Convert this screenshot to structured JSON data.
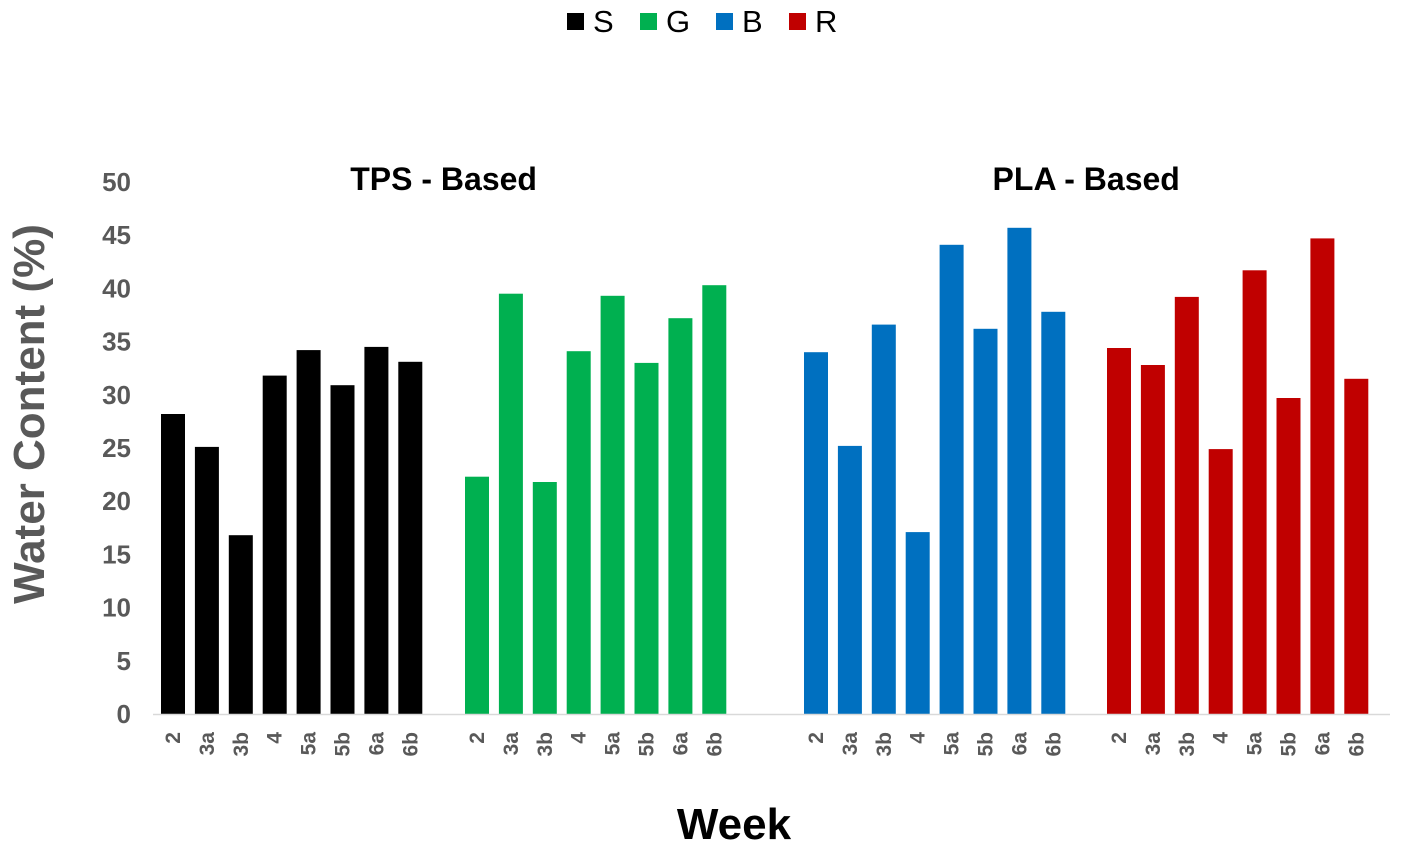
{
  "chart_data": {
    "type": "bar",
    "xlabel": "Week",
    "ylabel": "Water Content (%)",
    "ylim": [
      0,
      50
    ],
    "yticks": [
      0,
      5,
      10,
      15,
      20,
      25,
      30,
      35,
      40,
      45,
      50
    ],
    "grid": false,
    "legend_position": "top-center",
    "categories": [
      "2",
      "3a",
      "3b",
      "4",
      "5a",
      "5b",
      "6a",
      "6b"
    ],
    "panels": [
      {
        "title": "TPS - Based",
        "series": [
          "S",
          "G"
        ]
      },
      {
        "title": "PLA - Based",
        "series": [
          "B",
          "R"
        ]
      }
    ],
    "series": [
      {
        "name": "S",
        "color": "#000000",
        "values": [
          28.2,
          25.1,
          16.8,
          31.8,
          34.2,
          30.9,
          34.5,
          33.1
        ]
      },
      {
        "name": "G",
        "color": "#00B050",
        "values": [
          22.3,
          39.5,
          21.8,
          34.1,
          39.3,
          33.0,
          37.2,
          40.3
        ]
      },
      {
        "name": "B",
        "color": "#0070C0",
        "values": [
          34.0,
          25.2,
          36.6,
          17.1,
          44.1,
          36.2,
          45.7,
          37.8
        ]
      },
      {
        "name": "R",
        "color": "#C00000",
        "values": [
          34.4,
          32.8,
          39.2,
          24.9,
          41.7,
          29.7,
          44.7,
          31.5
        ]
      }
    ],
    "axis_color": "#D9D9D9",
    "tick_color": "#595959",
    "ylabel_color": "#595959",
    "xlabel_color": "#000000"
  }
}
